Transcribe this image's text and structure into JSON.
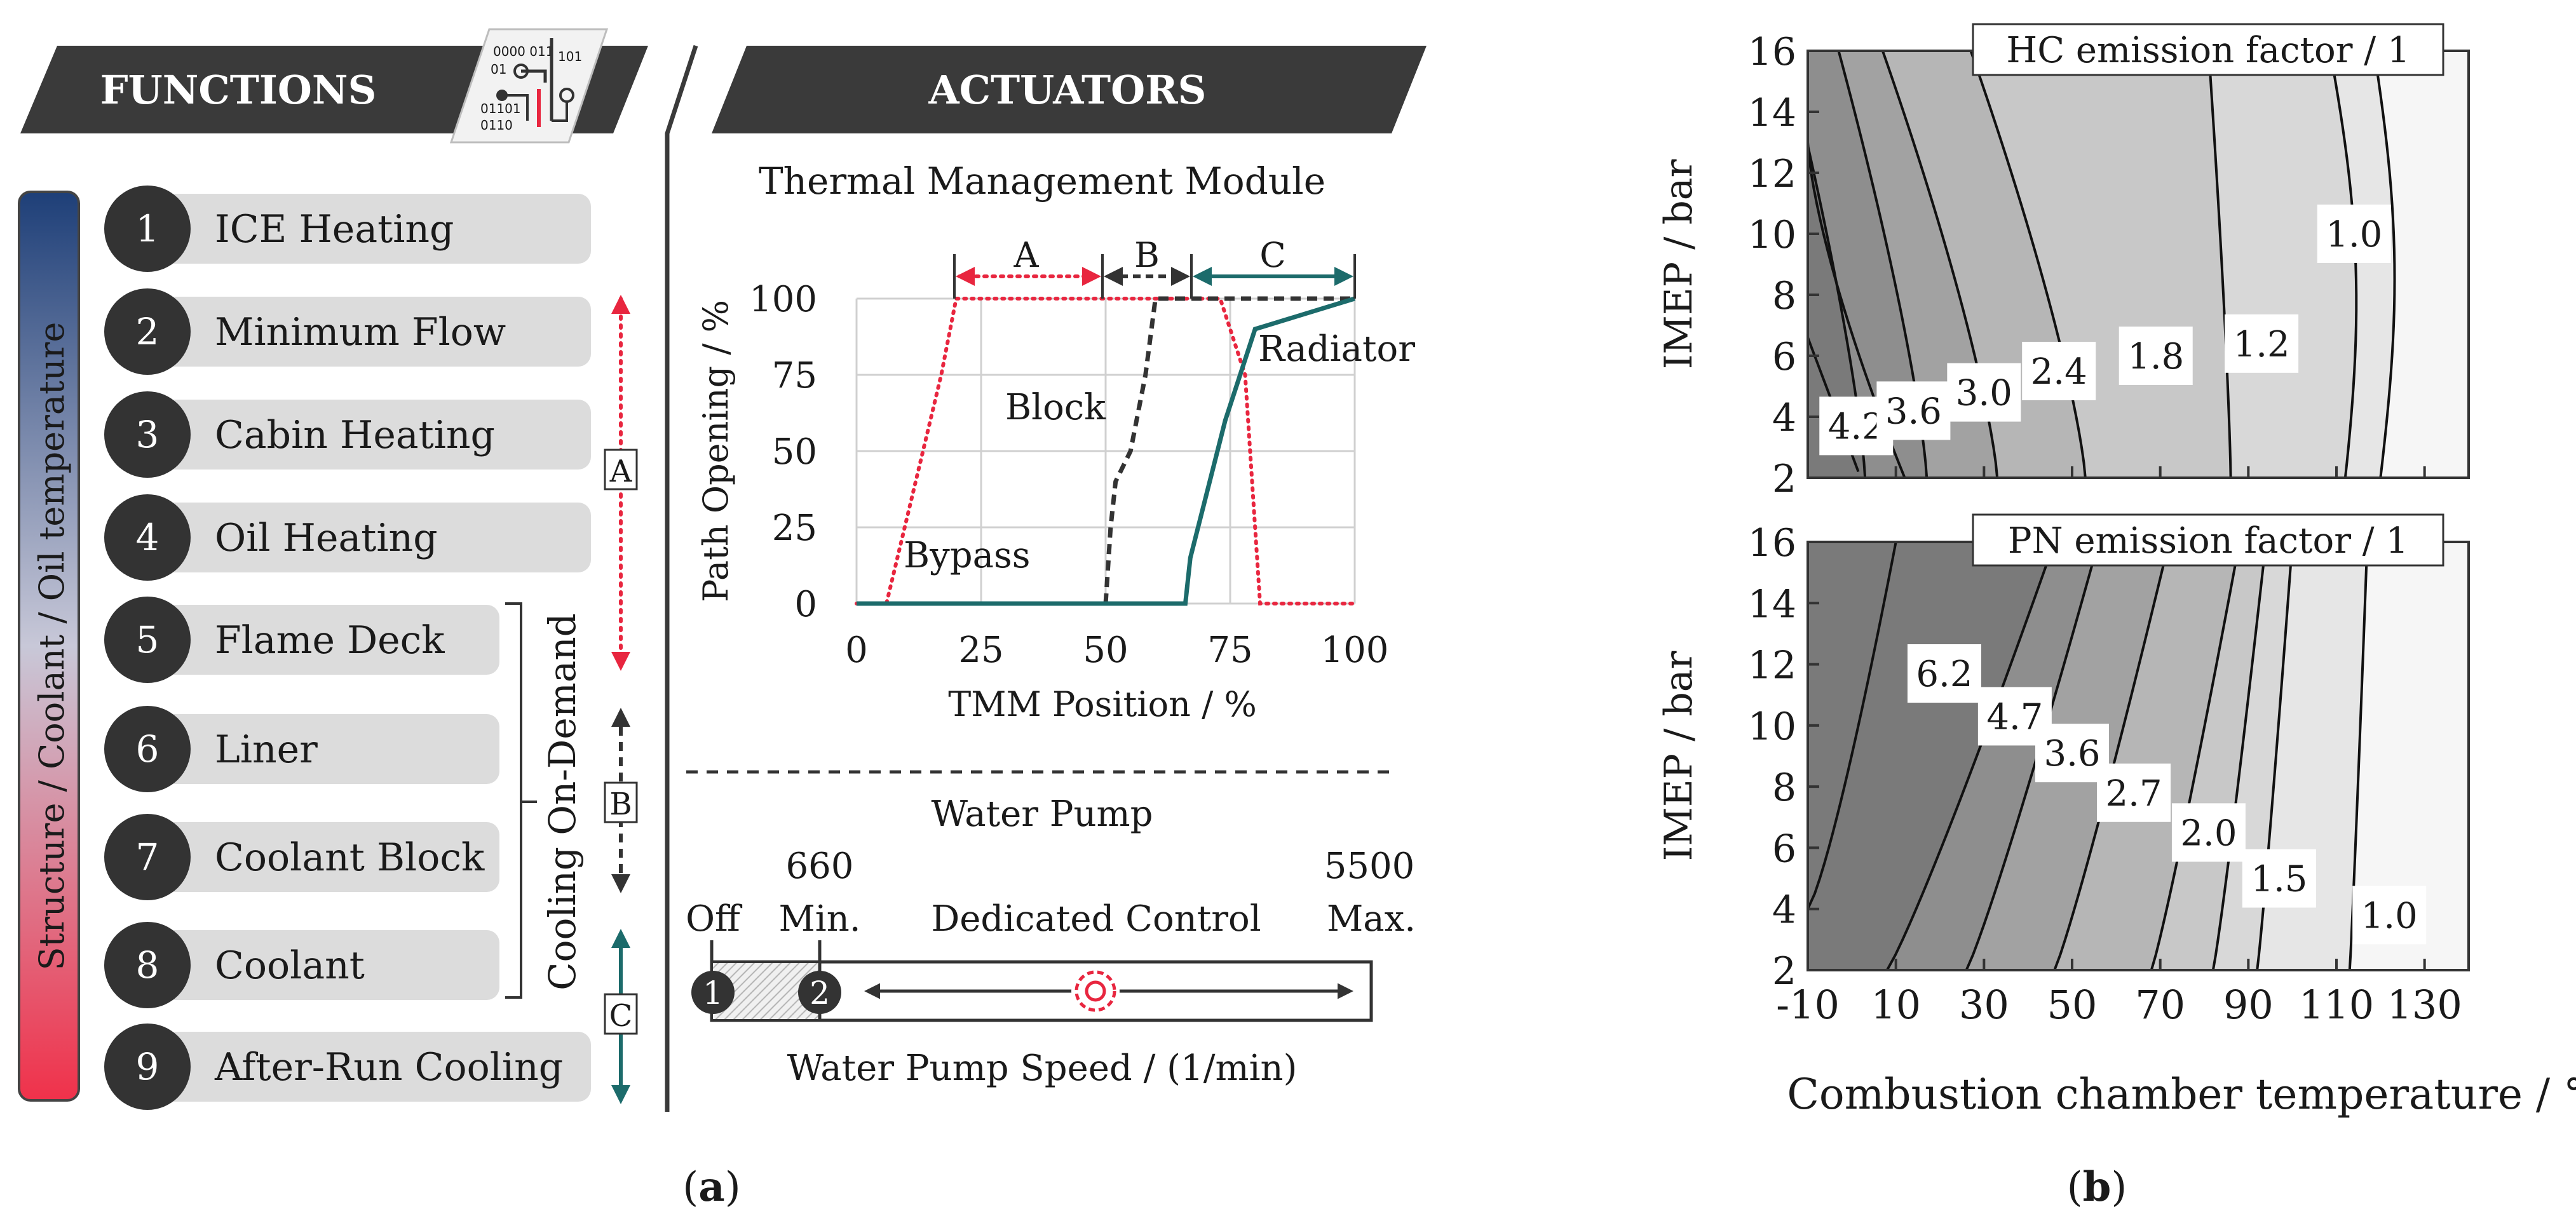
{
  "panel_a": {
    "label_text": "a",
    "functions_header": "FUNCTIONS",
    "actuators_header": "ACTUATORS",
    "circuit_icon_text": [
      "0000 011",
      "01",
      "101",
      "01101",
      "0110"
    ],
    "gradient_label": "Structure / Coolant / Oil temperature",
    "functions": [
      {
        "num": "1",
        "label": "ICE Heating"
      },
      {
        "num": "2",
        "label": "Minimum Flow"
      },
      {
        "num": "3",
        "label": "Cabin Heating"
      },
      {
        "num": "4",
        "label": "Oil Heating"
      },
      {
        "num": "5",
        "label": "Flame Deck"
      },
      {
        "num": "6",
        "label": "Liner"
      },
      {
        "num": "7",
        "label": "Coolant Block"
      },
      {
        "num": "8",
        "label": "Coolant"
      },
      {
        "num": "9",
        "label": "After-Run Cooling"
      }
    ],
    "cooling_on_demand_label": "Cooling On-Demand",
    "zone_labels": [
      "A",
      "B",
      "C"
    ],
    "colors": {
      "bypass": "#e8263f",
      "block": "#333333",
      "radiator": "#1c6b6b",
      "grad_top": "#1e3f78",
      "grad_bottom": "#f0314a"
    },
    "tmm": {
      "title": "Thermal Management Module",
      "range_labels": [
        "A",
        "B",
        "C"
      ],
      "chart_data": {
        "type": "line",
        "title": "Thermal Management Module",
        "xlabel": "TMM Position / %",
        "ylabel": "Path Opening / %",
        "xlim": [
          0,
          100
        ],
        "ylim": [
          0,
          100
        ],
        "xticks": [
          "0",
          "25",
          "50",
          "75",
          "100"
        ],
        "yticks": [
          "0",
          "25",
          "50",
          "75",
          "100"
        ],
        "series": [
          {
            "name": "Bypass",
            "points": [
              [
                0,
                0
              ],
              [
                6,
                0
              ],
              [
                17,
                75
              ],
              [
                20,
                100
              ],
              [
                73,
                100
              ],
              [
                78,
                75
              ],
              [
                81,
                0
              ],
              [
                100,
                0
              ]
            ]
          },
          {
            "name": "Block",
            "points": [
              [
                50,
                0
              ],
              [
                51,
                25
              ],
              [
                52,
                40
              ],
              [
                55,
                50
              ],
              [
                58,
                75
              ],
              [
                60,
                100
              ],
              [
                100,
                100
              ]
            ]
          },
          {
            "name": "Radiator",
            "points": [
              [
                0,
                0
              ],
              [
                66,
                0
              ],
              [
                67,
                15
              ],
              [
                74,
                60
              ],
              [
                80,
                90
              ],
              [
                100,
                100
              ]
            ]
          }
        ]
      }
    },
    "pump": {
      "title": "Water Pump",
      "tick_660": "660",
      "tick_5500": "5500",
      "off_label": "Off",
      "min_label": "Min.",
      "control_label": "Dedicated Control",
      "max_label": "Max.",
      "markers": [
        "1",
        "2"
      ],
      "axis_label": "Water Pump Speed / (1/min)"
    }
  },
  "panel_b": {
    "label_text": "b",
    "x_axis_label": "Combustion chamber temperature / °C",
    "x_ticks": [
      "-10",
      "10",
      "30",
      "50",
      "70",
      "90",
      "110",
      "130"
    ],
    "top": {
      "chart_data": {
        "type": "contour",
        "title": "HC emission factor / 1",
        "xlabel": "Combustion chamber temperature / °C",
        "ylabel": "IMEP / bar",
        "xlim": [
          -10,
          140
        ],
        "ylim": [
          2,
          16
        ],
        "yticks": [
          "2",
          "4",
          "6",
          "8",
          "10",
          "12",
          "14",
          "16"
        ],
        "levels": [
          {
            "label": "4.2",
            "x_at_ymin": 3
          },
          {
            "label": "3.6",
            "x_at_ymin": 17
          },
          {
            "label": "3.0",
            "x_at_ymin": 33
          },
          {
            "label": "2.4",
            "x_at_ymin": 53
          },
          {
            "label": "1.8",
            "x_at_ymin": 86
          },
          {
            "label": "1.2",
            "x_at_ymin": 112
          },
          {
            "label": "1.0",
            "x_at_ymin": 120
          }
        ]
      }
    },
    "bottom": {
      "chart_data": {
        "type": "contour",
        "title": "PN emission factor / 1",
        "xlabel": "Combustion chamber temperature / °C",
        "ylabel": "IMEP / bar",
        "xlim": [
          -10,
          140
        ],
        "ylim": [
          2,
          16
        ],
        "yticks": [
          "2",
          "4",
          "6",
          "8",
          "10",
          "12",
          "14",
          "16"
        ],
        "levels": [
          {
            "label": "6.2",
            "x_at_ymin": 8
          },
          {
            "label": "4.7",
            "x_at_ymin": 26
          },
          {
            "label": "3.6",
            "x_at_ymin": 46
          },
          {
            "label": "2.7",
            "x_at_ymin": 68
          },
          {
            "label": "2.0",
            "x_at_ymin": 82
          },
          {
            "label": "1.5",
            "x_at_ymin": 92
          },
          {
            "label": "1.0",
            "x_at_ymin": 113
          }
        ]
      }
    }
  }
}
